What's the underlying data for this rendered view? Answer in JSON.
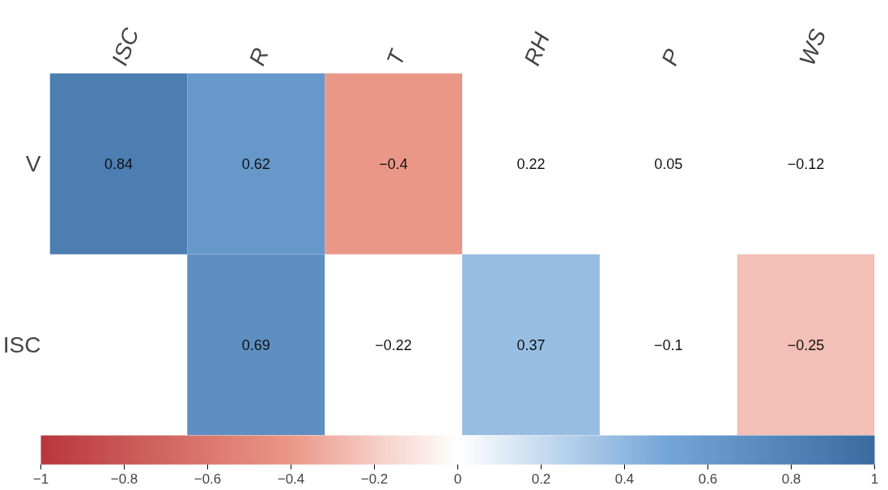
{
  "chart_data": {
    "type": "heatmap",
    "categories": [
      "ISC",
      "R",
      "T",
      "RH",
      "P",
      "WS"
    ],
    "y_categories": [
      "V",
      "ISC"
    ],
    "cells": [
      [
        0.84,
        0.62,
        -0.4,
        null,
        null,
        null
      ],
      [
        null,
        0.69,
        null,
        0.37,
        null,
        -0.25
      ]
    ],
    "cell_labels": [
      [
        "0.84",
        "0.62",
        "−0.4",
        "0.22",
        "0.05",
        "−0.12"
      ],
      [
        null,
        "0.69",
        "−0.22",
        "0.37",
        "−0.1",
        "−0.25"
      ]
    ],
    "clim": [
      -1,
      1
    ],
    "cticks": [
      {
        "value": -1,
        "label": "−1"
      },
      {
        "value": -0.8,
        "label": "−0.8"
      },
      {
        "value": -0.6,
        "label": "−0.6"
      },
      {
        "value": -0.4,
        "label": "−0.4"
      },
      {
        "value": -0.2,
        "label": "−0.2"
      },
      0,
      0.2,
      0.4,
      0.6,
      0.8,
      1
    ]
  }
}
